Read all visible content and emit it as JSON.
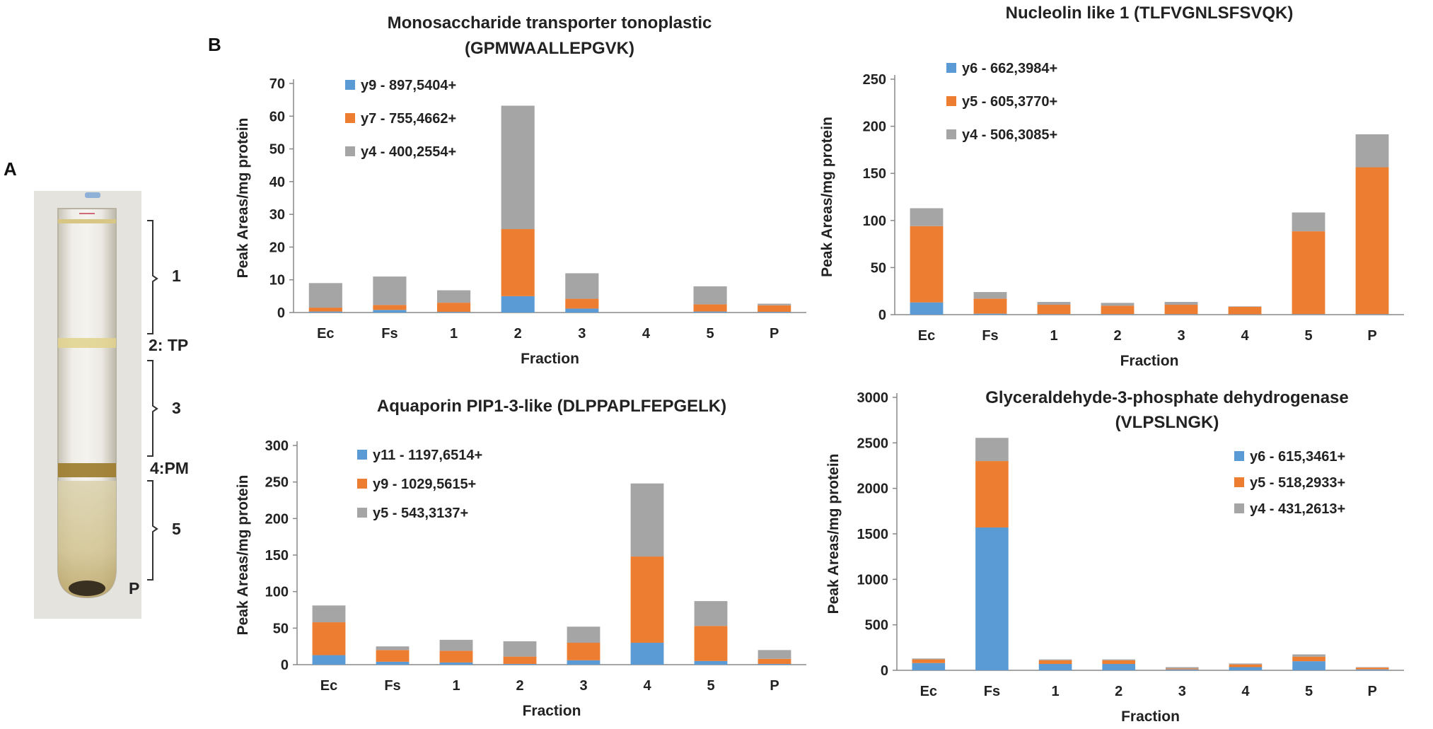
{
  "panels": {
    "a_label": "A",
    "b_label": "B"
  },
  "tube": {
    "bands": [
      "1",
      "2: TP",
      "3",
      "4:PM",
      "5",
      "P"
    ]
  },
  "colors": {
    "blue": "#5B9BD5",
    "orange": "#ED7D31",
    "gray": "#A5A5A5"
  },
  "chart_data": [
    {
      "type": "bar",
      "stacked": true,
      "title_lines": [
        "Monosaccharide transporter tonoplastic",
        "(GPMWAALLEPGVK)"
      ],
      "xlabel": "Fraction",
      "ylabel": "Peak Areas/mg protein",
      "categories": [
        "Ec",
        "Fs",
        "1",
        "2",
        "3",
        "4",
        "5",
        "P"
      ],
      "ylim": [
        0,
        70
      ],
      "yticks": [
        0,
        10,
        20,
        30,
        40,
        50,
        60,
        70
      ],
      "legend_position": "top-left",
      "series": [
        {
          "name": "y9 - 897,5404+",
          "color": "blue",
          "values": [
            0.3,
            0.8,
            0.2,
            5,
            1.2,
            0,
            0.3,
            0.2
          ]
        },
        {
          "name": "y7 - 755,4662+",
          "color": "orange",
          "values": [
            1.2,
            1.5,
            2.8,
            20.5,
            3.0,
            0,
            2.2,
            2.0
          ]
        },
        {
          "name": "y4 - 400,2554+",
          "color": "gray",
          "values": [
            7.5,
            8.7,
            3.8,
            37.7,
            7.8,
            0,
            5.5,
            0.5
          ]
        }
      ]
    },
    {
      "type": "bar",
      "stacked": true,
      "title_lines": [
        "Nucleolin like 1 (TLFVGNLSFSVQK)"
      ],
      "xlabel": "Fraction",
      "ylabel": "Peak Areas/mg protein",
      "categories": [
        "Ec",
        "Fs",
        "1",
        "2",
        "3",
        "4",
        "5",
        "P"
      ],
      "ylim": [
        0,
        250
      ],
      "yticks": [
        0,
        50,
        100,
        150,
        200,
        250
      ],
      "legend_position": "top-left",
      "series": [
        {
          "name": "y6 - 662,3984+",
          "color": "blue",
          "values": [
            13,
            1,
            0.5,
            0.5,
            0.5,
            0.3,
            0.5,
            0.5
          ]
        },
        {
          "name": "y5 - 605,3770+",
          "color": "orange",
          "values": [
            81,
            16,
            10,
            9,
            10,
            8,
            88,
            156
          ]
        },
        {
          "name": "y4 - 506,3085+",
          "color": "gray",
          "values": [
            19,
            7,
            3,
            3,
            3,
            0.5,
            20,
            35
          ]
        }
      ]
    },
    {
      "type": "bar",
      "stacked": true,
      "title_lines": [
        "Aquaporin PIP1-3-like (DLPPAPLFEPGELK)"
      ],
      "xlabel": "Fraction",
      "ylabel": "Peak Areas/mg protein",
      "categories": [
        "Ec",
        "Fs",
        "1",
        "2",
        "3",
        "4",
        "5",
        "P"
      ],
      "ylim": [
        0,
        300
      ],
      "yticks": [
        0,
        50,
        100,
        150,
        200,
        250,
        300
      ],
      "legend_position": "top-left",
      "series": [
        {
          "name": "y11 - 1197,6514+",
          "color": "blue",
          "values": [
            13,
            4,
            3,
            1,
            6,
            30,
            5,
            1
          ]
        },
        {
          "name": "y9 - 1029,5615+",
          "color": "orange",
          "values": [
            45,
            16,
            16,
            10,
            24,
            118,
            48,
            7
          ]
        },
        {
          "name": "y5 - 543,3137+",
          "color": "gray",
          "values": [
            23,
            5,
            15,
            21,
            22,
            100,
            34,
            12
          ]
        }
      ]
    },
    {
      "type": "bar",
      "stacked": true,
      "title_lines": [
        "Glyceraldehyde-3-phosphate dehydrogenase",
        "(VLPSLNGK)"
      ],
      "xlabel": "Fraction",
      "ylabel": "Peak Areas/mg protein",
      "categories": [
        "Ec",
        "Fs",
        "1",
        "2",
        "3",
        "4",
        "5",
        "P"
      ],
      "ylim": [
        0,
        3000
      ],
      "yticks": [
        0,
        500,
        1000,
        1500,
        2000,
        2500,
        3000
      ],
      "legend_position": "top-right",
      "series": [
        {
          "name": "y6 - 615,3461+",
          "color": "blue",
          "values": [
            80,
            1570,
            70,
            70,
            10,
            35,
            100,
            10
          ]
        },
        {
          "name": "y5 - 518,2933+",
          "color": "orange",
          "values": [
            40,
            730,
            40,
            40,
            10,
            30,
            50,
            20
          ]
        },
        {
          "name": "y4 - 431,2613+",
          "color": "gray",
          "values": [
            10,
            255,
            10,
            10,
            15,
            10,
            25,
            5
          ]
        }
      ]
    }
  ]
}
